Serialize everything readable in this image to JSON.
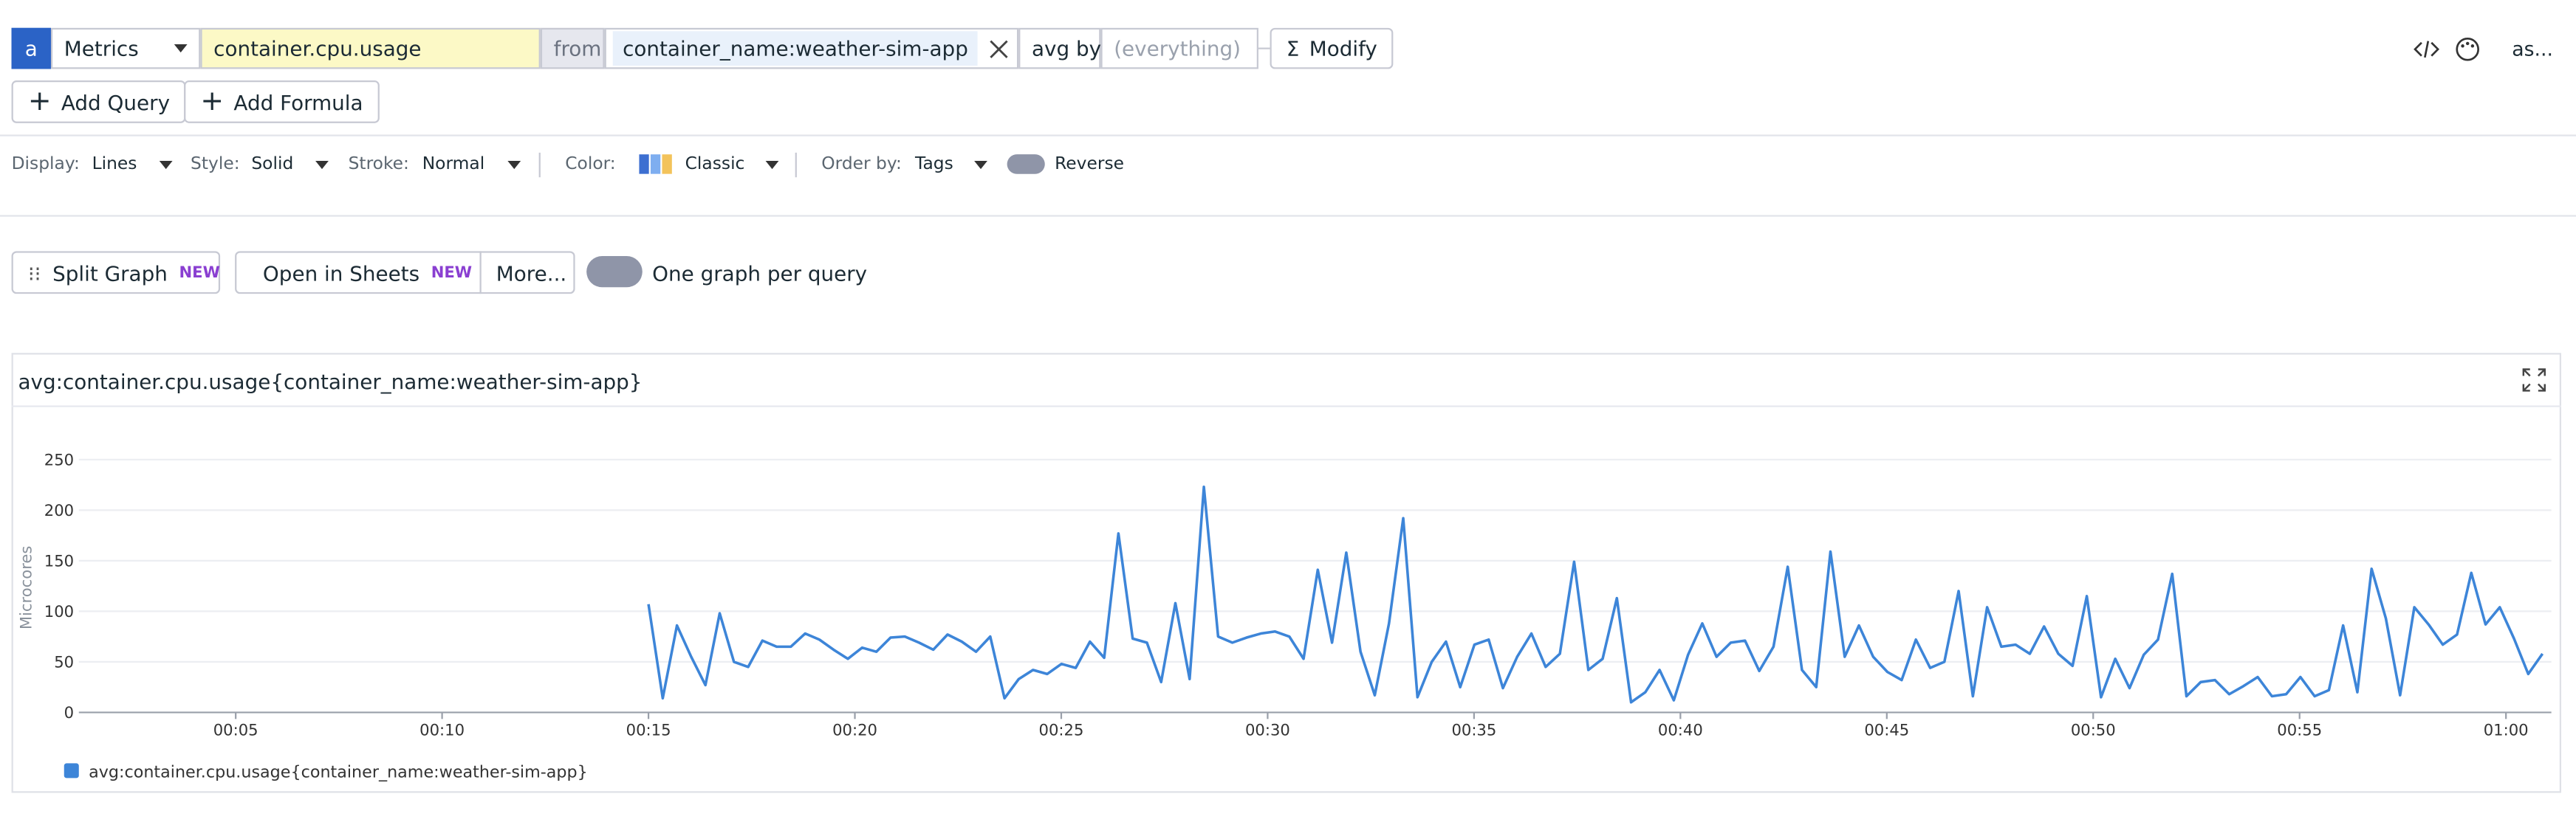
{
  "query": {
    "label": "a",
    "source": "Metrics",
    "metric": "container.cpu.usage",
    "from_label": "from",
    "filter": "container_name:weather-sim-app",
    "avg_by_label": "avg by",
    "group_placeholder": "(everything)",
    "modify": "Modify",
    "overflow": "as..."
  },
  "buttons": {
    "add_query": "Add Query",
    "add_formula": "Add Formula"
  },
  "options": {
    "display_label": "Display:",
    "display": "Lines",
    "style_label": "Style:",
    "style": "Solid",
    "stroke_label": "Stroke:",
    "stroke": "Normal",
    "color_label": "Color:",
    "color": "Classic",
    "order_label": "Order by:",
    "order": "Tags",
    "reverse": "Reverse"
  },
  "actions": {
    "split_graph": "Split Graph",
    "split_badge": "NEW",
    "open_sheets": "Open in Sheets",
    "sheets_badge": "NEW",
    "more": "More...",
    "one_graph": "One graph per query"
  },
  "chart_data": {
    "type": "line",
    "title": "avg:container.cpu.usage{container_name:weather-sim-app}",
    "y_label": "Microcores",
    "x": [
      15,
      15.345,
      15.69,
      16.035,
      16.38,
      16.725,
      17.07,
      17.415,
      17.76,
      18.105,
      18.45,
      18.795,
      19.14,
      19.485,
      19.83,
      20.175,
      20.52,
      20.865,
      21.21,
      21.555,
      21.9,
      22.245,
      22.59,
      22.935,
      23.28,
      23.625,
      23.97,
      24.315,
      24.66,
      25.005,
      25.35,
      25.695,
      26.04,
      26.385,
      26.73,
      27.075,
      27.42,
      27.765,
      28.11,
      28.455,
      28.8,
      29.145,
      29.49,
      29.835,
      30.18,
      30.525,
      30.87,
      31.215,
      31.56,
      31.905,
      32.25,
      32.595,
      32.94,
      33.285,
      33.63,
      33.975,
      34.32,
      34.665,
      35.01,
      35.355,
      35.7,
      36.045,
      36.39,
      36.735,
      37.08,
      37.425,
      37.77,
      38.115,
      38.46,
      38.805,
      39.15,
      39.495,
      39.84,
      40.185,
      40.53,
      40.875,
      41.22,
      41.565,
      41.91,
      42.255,
      42.6,
      42.945,
      43.29,
      43.635,
      43.98,
      44.325,
      44.67,
      45.015,
      45.36,
      45.705,
      46.05,
      46.395,
      46.74,
      47.085,
      47.43,
      47.775,
      48.12,
      48.465,
      48.81,
      49.155,
      49.5,
      49.845,
      50.19,
      50.535,
      50.88,
      51.225,
      51.57,
      51.915,
      52.26,
      52.605,
      52.95,
      53.295,
      53.64,
      53.985,
      54.33,
      54.675,
      55.02,
      55.365,
      55.71,
      56.055,
      56.4,
      56.745,
      57.09,
      57.435,
      57.78,
      58.125,
      58.47,
      58.815,
      59.16,
      59.505,
      59.85,
      60.195,
      60.54,
      60.885
    ],
    "series": [
      {
        "name": "avg:container.cpu.usage{container_name:weather-sim-app}",
        "color": "#3d85d8",
        "values": [
          107,
          14,
          86,
          55,
          27,
          98,
          50,
          45,
          71,
          65,
          65,
          78,
          72,
          62,
          53,
          64,
          60,
          74,
          75,
          69,
          62,
          77,
          70,
          60,
          75,
          14,
          33,
          42,
          38,
          48,
          44,
          70,
          54,
          177,
          73,
          69,
          30,
          108,
          33,
          223,
          75,
          69,
          74,
          78,
          80,
          75,
          53,
          141,
          69,
          158,
          60,
          17,
          88,
          192,
          15,
          50,
          70,
          25,
          67,
          72,
          24,
          55,
          78,
          45,
          58,
          149,
          42,
          53,
          113,
          10,
          20,
          42,
          12,
          57,
          88,
          55,
          69,
          71,
          41,
          65,
          144,
          42,
          25,
          159,
          55,
          86,
          55,
          40,
          32,
          72,
          44,
          50,
          120,
          16,
          104,
          65,
          67,
          58,
          85,
          58,
          46,
          115,
          15,
          53,
          24,
          57,
          72,
          137,
          16,
          30,
          32,
          18,
          26,
          35,
          16,
          18,
          35,
          16,
          22,
          86,
          20,
          142,
          93,
          17,
          104,
          87,
          67,
          77,
          138,
          87,
          104,
          73,
          38,
          58
        ]
      }
    ],
    "xlim": [
      1.2,
      61.1
    ],
    "xticks": [
      {
        "value": 5,
        "label": "00:05"
      },
      {
        "value": 10,
        "label": "00:10"
      },
      {
        "value": 15,
        "label": "00:15"
      },
      {
        "value": 20,
        "label": "00:20"
      },
      {
        "value": 25,
        "label": "00:25"
      },
      {
        "value": 30,
        "label": "00:30"
      },
      {
        "value": 35,
        "label": "00:35"
      },
      {
        "value": 40,
        "label": "00:40"
      },
      {
        "value": 45,
        "label": "00:45"
      },
      {
        "value": 50,
        "label": "00:50"
      },
      {
        "value": 55,
        "label": "00:55"
      },
      {
        "value": 60,
        "label": "01:00"
      }
    ],
    "ylim": [
      0,
      280
    ],
    "yticks": [
      0,
      50,
      100,
      150,
      200,
      250
    ],
    "grid": true
  }
}
